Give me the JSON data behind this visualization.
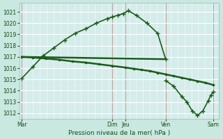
{
  "background_color": "#c8e8e0",
  "grid_color": "#b0d0c8",
  "plot_bg": "#d4ecea",
  "line_color": "#1a5c1a",
  "ylabel_text": "Pression niveau de la mer( hPa )",
  "ylim": [
    1011.5,
    1021.8
  ],
  "yticks": [
    1012,
    1013,
    1014,
    1015,
    1016,
    1017,
    1018,
    1019,
    1020,
    1021
  ],
  "xlim": [
    0,
    7.5
  ],
  "x_tick_positions": [
    0.1,
    3.5,
    4.0,
    5.5,
    7.3
  ],
  "x_tick_names": [
    "Mar",
    "Dim",
    "Jeu",
    "Ven",
    "Sam"
  ],
  "vline_positions": [
    0.1,
    3.5,
    4.0,
    5.5,
    7.3
  ],
  "curve1_x": [
    0.1,
    0.5,
    0.9,
    1.3,
    1.7,
    2.1,
    2.5,
    2.9,
    3.3,
    3.5,
    3.7,
    3.9,
    4.1,
    4.4,
    4.8,
    5.2,
    5.5
  ],
  "curve1_y": [
    1015.1,
    1016.1,
    1017.1,
    1017.8,
    1018.5,
    1019.1,
    1019.5,
    1020.0,
    1020.4,
    1020.55,
    1020.7,
    1020.85,
    1021.1,
    1020.7,
    1020.0,
    1019.1,
    1016.8
  ],
  "curve2_x": [
    0.1,
    0.5,
    1.0,
    1.5,
    2.0,
    2.5,
    3.0,
    3.5,
    4.0,
    4.3,
    4.6,
    4.9,
    5.2,
    5.5,
    5.8,
    6.1,
    6.4,
    6.7,
    7.0,
    7.3
  ],
  "curve2_y": [
    1017.0,
    1016.95,
    1016.85,
    1016.75,
    1016.6,
    1016.5,
    1016.35,
    1016.2,
    1016.05,
    1015.95,
    1015.85,
    1015.75,
    1015.6,
    1015.45,
    1015.3,
    1015.15,
    1015.0,
    1014.85,
    1014.7,
    1014.5
  ],
  "curve4_x": [
    5.5,
    5.8,
    6.1,
    6.3,
    6.5,
    6.7,
    6.9,
    7.1,
    7.2,
    7.3
  ],
  "curve4_y": [
    1014.9,
    1014.4,
    1013.5,
    1013.0,
    1012.2,
    1011.8,
    1012.2,
    1013.1,
    1013.6,
    1013.9
  ]
}
